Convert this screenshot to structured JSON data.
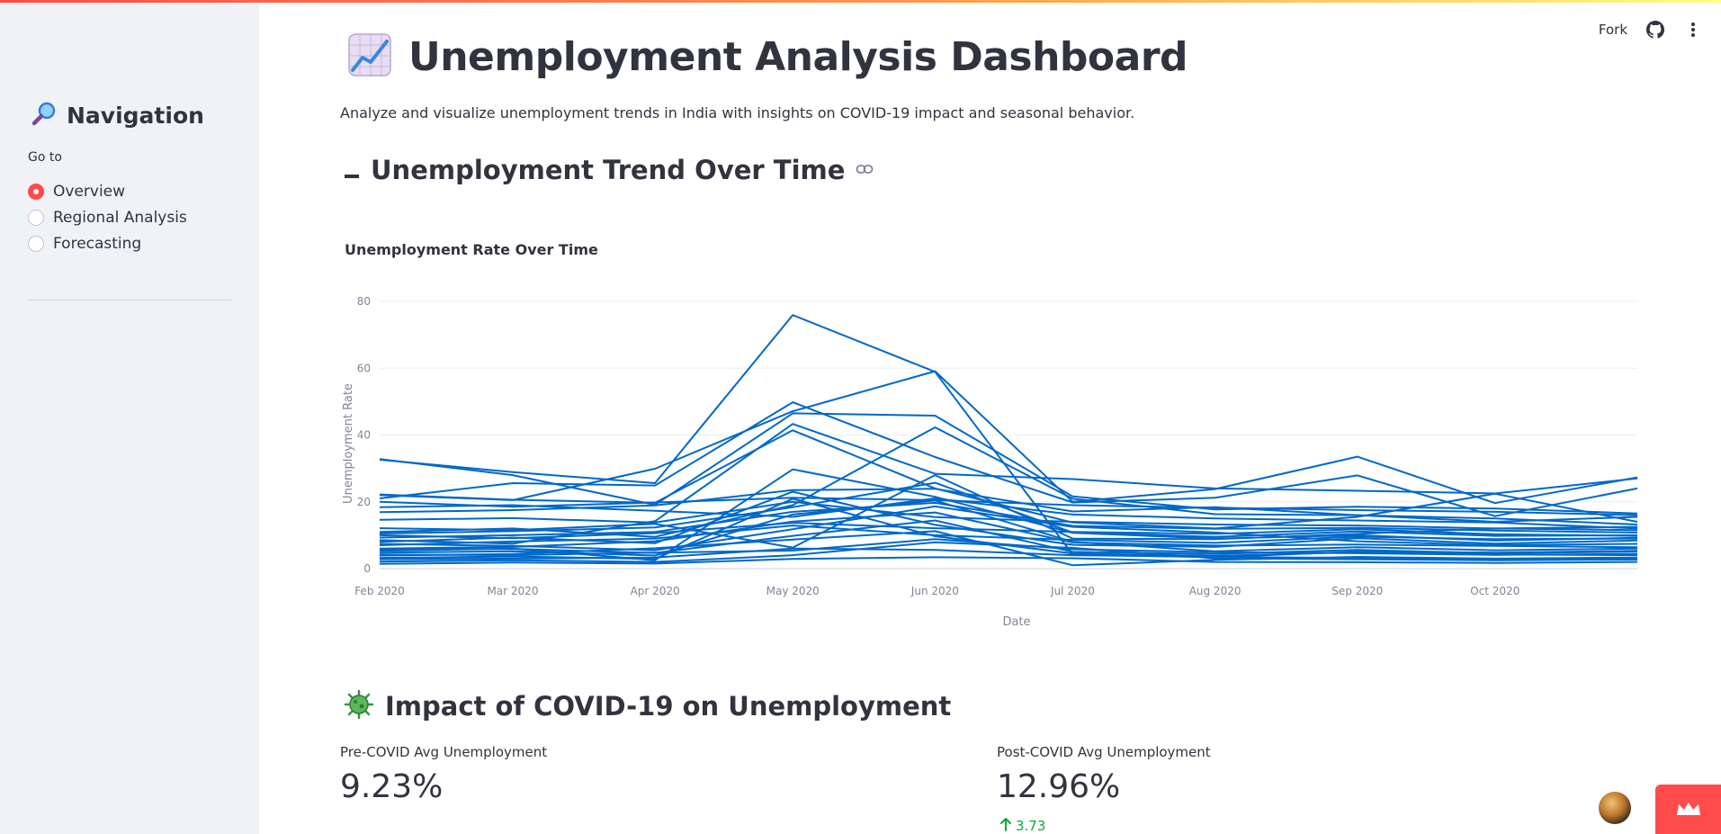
{
  "header": {
    "fork_label": "Fork",
    "github_icon": "github-icon",
    "menu_icon": "kebab-menu-icon"
  },
  "sidebar": {
    "title": "Navigation",
    "title_icon": "magnifier-icon",
    "radio_label": "Go to",
    "options": [
      {
        "label": "Overview",
        "selected": true
      },
      {
        "label": "Regional Analysis",
        "selected": false
      },
      {
        "label": "Forecasting",
        "selected": false
      }
    ]
  },
  "main": {
    "title": "Unemployment Analysis Dashboard",
    "title_icon": "chart-increasing-icon",
    "subtitle": "Analyze and visualize unemployment trends in India with insights on COVID-19 impact and seasonal behavior.",
    "trend_section": {
      "heading": "Unemployment Trend Over Time",
      "heading_icon": "dash-icon",
      "link_icon": "link-icon"
    },
    "covid_section": {
      "heading": "Impact of COVID-19 on Unemployment",
      "heading_icon": "virus-icon"
    },
    "metrics": [
      {
        "label": "Pre-COVID Avg Unemployment",
        "value": "9.23%"
      },
      {
        "label": "Post-COVID Avg Unemployment",
        "value": "12.96%",
        "delta": "3.73"
      }
    ]
  },
  "colors": {
    "accent": "#ff4b4b",
    "line": "#0068c9",
    "sidebar_bg": "#f0f2f6",
    "delta_positive": "#09ab3b"
  },
  "chart_data": {
    "type": "line",
    "title": "Unemployment Rate Over Time",
    "xlabel": "Date",
    "ylabel": "Unemployment Rate",
    "ylim": [
      0,
      80
    ],
    "yticks": [
      0,
      20,
      40,
      60,
      80
    ],
    "xticks": [
      "Feb 2020",
      "Mar 2020",
      "Apr 2020",
      "May 2020",
      "Jun 2020",
      "Jul 2020",
      "Aug 2020",
      "Sep 2020",
      "Oct 2020"
    ],
    "x": [
      "2020-01-31",
      "2020-02-29",
      "2020-03-31",
      "2020-04-30",
      "2020-05-31",
      "2020-06-30",
      "2020-07-31",
      "2020-08-31",
      "2020-09-30",
      "2020-10-31"
    ],
    "grid": true,
    "series": [
      {
        "values": [
          32.6,
          28.9,
          25.6,
          75.9,
          58.9,
          4.2,
          3.4,
          5.1,
          4.8,
          5.3
        ]
      },
      {
        "values": [
          22.0,
          20.5,
          29.9,
          47.1,
          59.1,
          20.0,
          23.8,
          33.5,
          19.6,
          27.3
        ]
      },
      {
        "values": [
          21.0,
          25.6,
          24.9,
          49.8,
          33.4,
          19.8,
          21.2,
          27.9,
          15.7,
          24.0
        ]
      },
      {
        "values": [
          32.8,
          28.0,
          19.1,
          46.5,
          45.8,
          21.6,
          17.7,
          18.5,
          18.0,
          16.5
        ]
      },
      {
        "values": [
          8.5,
          7.5,
          14.2,
          43.3,
          28.4,
          26.8,
          24.0,
          23.3,
          22.5,
          27.0
        ]
      },
      {
        "values": [
          22.2,
          20.6,
          19.7,
          41.4,
          24.0,
          13.8,
          12.0,
          15.5,
          22.4,
          14.0
        ]
      },
      {
        "values": [
          11.0,
          12.0,
          9.5,
          19.0,
          42.3,
          20.9,
          16.3,
          16.0,
          14.0,
          15.5
        ]
      },
      {
        "values": [
          5.3,
          6.0,
          2.5,
          29.7,
          21.5,
          10.7,
          9.0,
          10.0,
          8.4,
          9.2
        ]
      },
      {
        "values": [
          16.9,
          17.5,
          18.9,
          23.5,
          23.9,
          17.1,
          18.4,
          16.0,
          15.0,
          13.2
        ]
      },
      {
        "values": [
          20.0,
          18.5,
          19.8,
          21.2,
          20.5,
          19.0,
          18.2,
          17.5,
          17.0,
          16.0
        ]
      },
      {
        "values": [
          10.5,
          11.2,
          12.3,
          18.4,
          25.7,
          10.8,
          9.5,
          11.1,
          9.8,
          10.0
        ]
      },
      {
        "values": [
          8.0,
          9.3,
          7.6,
          23.0,
          13.1,
          7.1,
          6.5,
          9.1,
          7.5,
          8.4
        ]
      },
      {
        "values": [
          4.8,
          5.2,
          3.9,
          16.2,
          20.4,
          8.0,
          5.2,
          6.4,
          5.5,
          6.0
        ]
      },
      {
        "values": [
          7.4,
          6.8,
          5.5,
          11.8,
          18.6,
          12.5,
          10.8,
          8.2,
          7.0,
          7.4
        ]
      },
      {
        "values": [
          3.2,
          3.6,
          2.9,
          20.9,
          9.7,
          4.5,
          3.8,
          4.9,
          4.2,
          4.0
        ]
      },
      {
        "values": [
          12.1,
          11.5,
          13.4,
          6.3,
          28.0,
          9.0,
          8.8,
          10.4,
          12.0,
          11.5
        ]
      },
      {
        "values": [
          2.1,
          2.5,
          2.0,
          4.0,
          7.9,
          6.2,
          3.1,
          2.8,
          2.5,
          2.7
        ]
      },
      {
        "values": [
          6.0,
          6.5,
          8.2,
          14.1,
          16.8,
          7.8,
          6.9,
          7.2,
          6.8,
          6.4
        ]
      },
      {
        "values": [
          9.3,
          10.0,
          11.0,
          17.0,
          19.7,
          12.8,
          11.9,
          12.2,
          11.4,
          10.8
        ]
      },
      {
        "values": [
          1.4,
          1.8,
          1.5,
          2.9,
          3.4,
          3.1,
          2.0,
          1.9,
          1.7,
          2.0
        ]
      },
      {
        "values": [
          14.6,
          15.1,
          13.8,
          20.0,
          15.4,
          14.0,
          13.2,
          12.9,
          12.0,
          12.5
        ]
      },
      {
        "values": [
          3.9,
          4.4,
          6.1,
          8.7,
          11.2,
          1.0,
          2.6,
          3.5,
          3.0,
          3.3
        ]
      },
      {
        "values": [
          18.4,
          19.0,
          17.3,
          15.5,
          21.0,
          16.2,
          15.0,
          14.4,
          13.8,
          12.0
        ]
      },
      {
        "values": [
          5.7,
          5.9,
          4.7,
          9.8,
          14.4,
          5.0,
          4.4,
          5.6,
          4.6,
          5.1
        ]
      },
      {
        "values": [
          7.0,
          8.1,
          9.0,
          12.9,
          10.0,
          8.6,
          7.7,
          9.6,
          8.8,
          9.0
        ]
      },
      {
        "values": [
          2.8,
          3.0,
          3.3,
          6.0,
          5.6,
          4.0,
          3.5,
          3.2,
          2.9,
          3.0
        ]
      },
      {
        "values": [
          10.0,
          9.1,
          10.6,
          13.7,
          12.1,
          11.0,
          10.4,
          11.8,
          10.3,
          9.8
        ]
      },
      {
        "values": [
          4.2,
          4.0,
          4.8,
          5.4,
          8.8,
          5.8,
          4.9,
          4.6,
          4.1,
          4.4
        ]
      }
    ]
  }
}
